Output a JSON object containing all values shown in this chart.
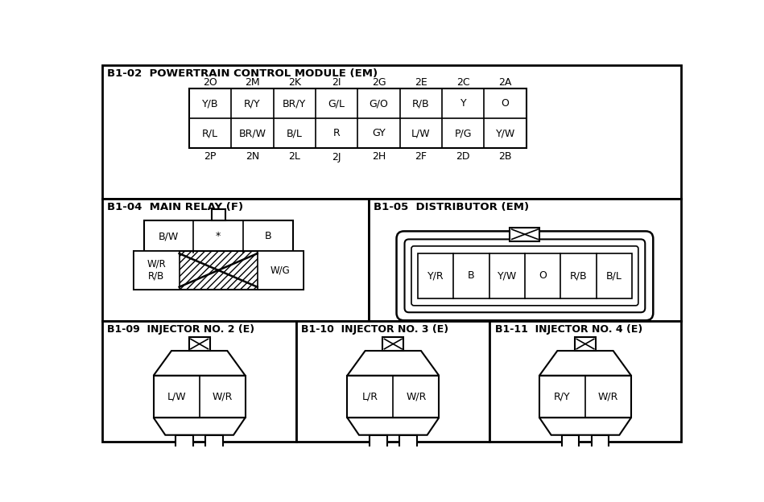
{
  "bg_color": "#ffffff",
  "sections": {
    "pcm": {
      "label": "B1-02  POWERTRAIN CONTROL MODULE (EM)",
      "top_pins": [
        "2O",
        "2M",
        "2K",
        "2I",
        "2G",
        "2E",
        "2C",
        "2A"
      ],
      "bottom_pins": [
        "2P",
        "2N",
        "2L",
        "2J",
        "2H",
        "2F",
        "2D",
        "2B"
      ],
      "row1": [
        "Y/B",
        "R/Y",
        "BR/Y",
        "G/L",
        "G/O",
        "R/B",
        "Y",
        "O"
      ],
      "row2": [
        "R/L",
        "BR/W",
        "B/L",
        "R",
        "GY",
        "L/W",
        "P/G",
        "Y/W"
      ]
    },
    "main_relay": {
      "label": "B1-04  MAIN RELAY (F)",
      "top_row": [
        "B/W",
        "*",
        "B"
      ],
      "bottom_left": "W/R\nR/B",
      "bottom_right": "W/G"
    },
    "distributor": {
      "label": "B1-05  DISTRIBUTOR (EM)",
      "pins": [
        "Y/R",
        "B",
        "Y/W",
        "O",
        "R/B",
        "B/L"
      ]
    },
    "injector2": {
      "label": "B1-09  INJECTOR NO. 2 (E)",
      "pins": [
        "L/W",
        "W/R"
      ]
    },
    "injector3": {
      "label": "B1-10  INJECTOR NO. 3 (E)",
      "pins": [
        "L/R",
        "W/R"
      ]
    },
    "injector4": {
      "label": "B1-11  INJECTOR NO. 4 (E)",
      "pins": [
        "R/Y",
        "W/R"
      ]
    }
  }
}
